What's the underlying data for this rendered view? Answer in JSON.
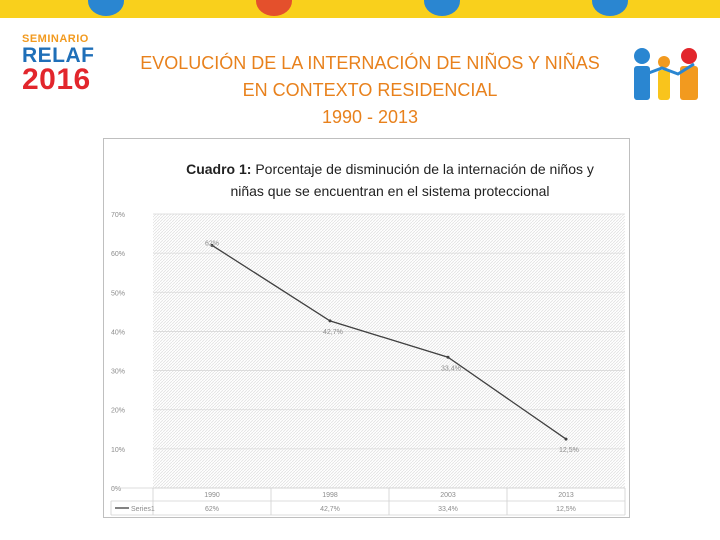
{
  "header": {
    "title_line1": "EVOLUCIÓN DE LA INTERNACIÓN DE NIÑOS Y NIÑAS",
    "title_line2": "EN CONTEXTO RESIDENCIAL",
    "title_line3": "1990 - 2013"
  },
  "logo": {
    "line1": "SEMINARIO",
    "line2": "RELAF",
    "line3": "2016"
  },
  "colors": {
    "title": "#e8811c",
    "band": "#f9d01c",
    "line": "#404040"
  },
  "chart_data": {
    "type": "line",
    "caption_bold": "Cuadro 1:",
    "caption_text": " Porcentaje de disminución de la internación de niños y niñas que se encuentran en el sistema proteccional",
    "categories": [
      "1990",
      "1998",
      "2003",
      "2013"
    ],
    "series": [
      {
        "name": "Series1",
        "values": [
          62,
          42.7,
          33.4,
          12.5
        ],
        "labels": [
          "62%",
          "42,7%",
          "33,4%",
          "12,5%"
        ]
      }
    ],
    "y_ticks": [
      "0%",
      "10%",
      "20%",
      "30%",
      "40%",
      "50%",
      "60%",
      "70%"
    ],
    "ylim": [
      0,
      70
    ],
    "grid": true,
    "legend": "bottom-left (data table)"
  }
}
